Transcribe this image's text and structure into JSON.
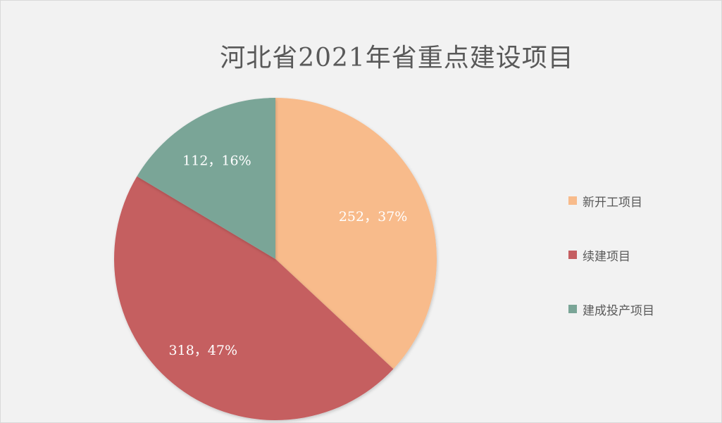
{
  "chart_data": {
    "type": "pie",
    "title": "河北省2021年省重点建设项目",
    "categories": [
      "新开工项目",
      "续建项目",
      "建成投产项目"
    ],
    "values": [
      252,
      318,
      112
    ],
    "percent_labels": [
      "37%",
      "47%",
      "16%"
    ],
    "data_labels": [
      "252，37%",
      "318，47%",
      "112，16%"
    ],
    "colors": [
      "#f8bb8b",
      "#c55e61",
      "#7aa597"
    ],
    "legend_position": "right",
    "start_angle": "12 o'clock",
    "direction": "clockwise"
  }
}
